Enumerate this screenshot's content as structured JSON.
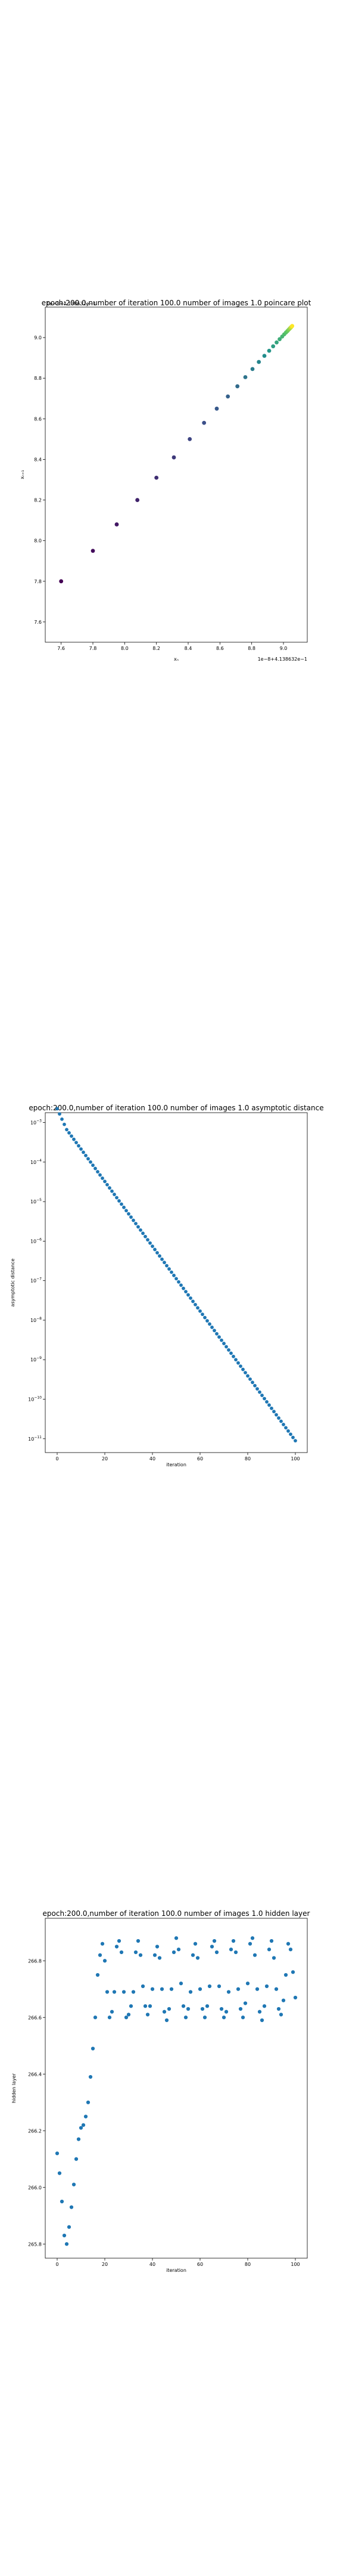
{
  "chart_data": [
    {
      "type": "scatter",
      "title": "epoch:200.0,number of iteration 100.0 number of images 1.0 poincare plot",
      "xlabel": "xₙ",
      "ylabel": "xₙ₊₁",
      "x_offset_text": "1e−8+4.138632e−1",
      "y_offset_text": "1e−8+4.138632e−1",
      "xlim": [
        7.5,
        9.15
      ],
      "ylim": [
        7.5,
        9.15
      ],
      "xticks": [
        7.6,
        7.8,
        8.0,
        8.2,
        8.4,
        8.6,
        8.8,
        9.0
      ],
      "yticks": [
        7.6,
        7.8,
        8.0,
        8.2,
        8.4,
        8.6,
        8.8,
        9.0
      ],
      "tick_labels": [
        "7.6",
        "7.8",
        "8.0",
        "8.2",
        "8.4",
        "8.6",
        "8.8",
        "9.0"
      ],
      "colormap": [
        "#440154",
        "#3b528b",
        "#21918c",
        "#5ec962",
        "#fde725"
      ],
      "x": [
        7.6,
        7.8,
        7.95,
        8.08,
        8.2,
        8.31,
        8.41,
        8.5,
        8.58,
        8.65,
        8.71,
        8.76,
        8.805,
        8.845,
        8.88,
        8.91,
        8.935,
        8.957,
        8.976,
        8.992,
        9.005,
        9.016,
        9.025,
        9.032,
        9.038,
        9.043,
        9.047,
        9.05,
        9.053,
        9.055
      ],
      "y": [
        7.8,
        7.95,
        8.08,
        8.2,
        8.31,
        8.41,
        8.5,
        8.58,
        8.65,
        8.71,
        8.76,
        8.805,
        8.845,
        8.88,
        8.91,
        8.935,
        8.957,
        8.976,
        8.992,
        9.005,
        9.016,
        9.025,
        9.032,
        9.038,
        9.043,
        9.047,
        9.05,
        9.053,
        9.055,
        9.057
      ],
      "grid": false
    },
    {
      "type": "scatter",
      "title": "epoch:200.0,number of iteration 100.0  number of images 1.0 asymptotic distance",
      "xlabel": "iteration",
      "ylabel": "asymptotic distance",
      "xlim": [
        -5,
        105
      ],
      "ylim_log10": [
        -11.35,
        -2.75
      ],
      "xticks": [
        0,
        20,
        40,
        60,
        80,
        100
      ],
      "ytick_exponents": [
        -3,
        -4,
        -5,
        -6,
        -7,
        -8,
        -9,
        -10,
        -11
      ],
      "tick_base": "10",
      "scale_y": "log",
      "color": "#1f77b4",
      "log10_start": -2.85,
      "log10_end": -11.05,
      "n_points": 101,
      "grid": false
    },
    {
      "type": "scatter",
      "title": "epoch:200.0,number of iteration 100.0  number of images 1.0 hidden layer",
      "xlabel": "iteration",
      "ylabel": "hidden layer",
      "xlim": [
        -5,
        105
      ],
      "ylim": [
        265.75,
        266.95
      ],
      "xticks": [
        0,
        20,
        40,
        60,
        80,
        100
      ],
      "yticks": [
        265.8,
        266.0,
        266.2,
        266.4,
        266.6,
        266.8
      ],
      "ytick_labels": [
        "265.8",
        "266.0",
        "266.2",
        "266.4",
        "266.6",
        "266.8"
      ],
      "color": "#1f77b4",
      "x": [
        0,
        1,
        2,
        3,
        4,
        5,
        6,
        7,
        8,
        9,
        10,
        11,
        12,
        13,
        14,
        15,
        16,
        17,
        18,
        19,
        20,
        21,
        22,
        23,
        24,
        25,
        26,
        27,
        28,
        29,
        30,
        31,
        32,
        33,
        34,
        35,
        36,
        37,
        38,
        39,
        40,
        41,
        42,
        43,
        44,
        45,
        46,
        47,
        48,
        49,
        50,
        51,
        52,
        53,
        54,
        55,
        56,
        57,
        58,
        59,
        60,
        61,
        62,
        63,
        64,
        65,
        66,
        67,
        68,
        69,
        70,
        71,
        72,
        73,
        74,
        75,
        76,
        77,
        78,
        79,
        80,
        81,
        82,
        83,
        84,
        85,
        86,
        87,
        88,
        89,
        90,
        91,
        92,
        93,
        94,
        95,
        96,
        97,
        98,
        99,
        100
      ],
      "values": [
        266.12,
        266.05,
        265.95,
        265.83,
        265.8,
        265.86,
        265.93,
        266.01,
        266.1,
        266.17,
        266.21,
        266.22,
        266.25,
        266.3,
        266.39,
        266.49,
        266.6,
        266.75,
        266.82,
        266.86,
        266.8,
        266.69,
        266.6,
        266.62,
        266.69,
        266.85,
        266.87,
        266.83,
        266.69,
        266.6,
        266.61,
        266.64,
        266.69,
        266.83,
        266.87,
        266.82,
        266.71,
        266.64,
        266.61,
        266.64,
        266.7,
        266.82,
        266.85,
        266.81,
        266.7,
        266.62,
        266.59,
        266.63,
        266.7,
        266.83,
        266.88,
        266.84,
        266.72,
        266.64,
        266.6,
        266.63,
        266.69,
        266.82,
        266.86,
        266.81,
        266.7,
        266.63,
        266.6,
        266.64,
        266.71,
        266.85,
        266.87,
        266.83,
        266.71,
        266.63,
        266.6,
        266.62,
        266.69,
        266.84,
        266.87,
        266.83,
        266.7,
        266.63,
        266.6,
        266.65,
        266.72,
        266.86,
        266.88,
        266.82,
        266.7,
        266.62,
        266.59,
        266.64,
        266.71,
        266.84,
        266.87,
        266.81,
        266.7,
        266.63,
        266.61,
        266.66,
        266.75,
        266.86,
        266.84,
        266.76,
        266.67
      ],
      "grid": false
    }
  ]
}
